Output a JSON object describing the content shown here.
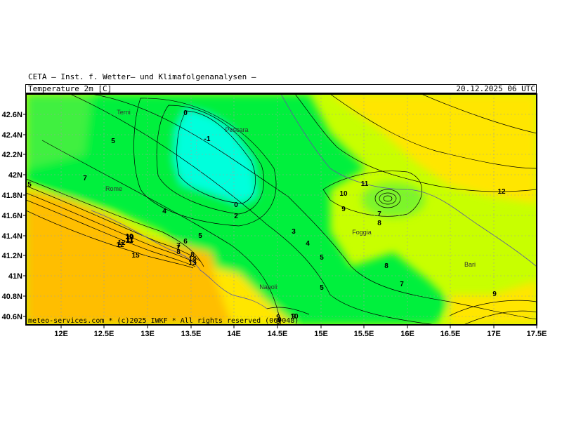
{
  "header": {
    "institute": "CETA — Inst. f. Wetter— und Klimafolgenanalysen —",
    "parameter": "Temperature_2m [C]",
    "valid_time": "20.12.2025 06 UTC"
  },
  "footer": "meteo-services.com * (c)2025 IWKF * All rights reserved (06+048)",
  "axes": {
    "lon_ticks": [
      "12E",
      "12.5E",
      "13E",
      "13.5E",
      "14E",
      "14.5E",
      "15E",
      "15.5E",
      "16E",
      "16.5E",
      "17E",
      "17.5E"
    ],
    "lat_ticks": [
      "42.6N",
      "42.4N",
      "42.2N",
      "42N",
      "41.8N",
      "41.6N",
      "41.4N",
      "41.2N",
      "41N",
      "40.8N",
      "40.6N"
    ]
  },
  "cities": [
    "Terni",
    "Pescara",
    "Rome",
    "Foggia",
    "Bari",
    "Napoli"
  ],
  "contour_labels": [
    "0",
    "-1",
    "5",
    "7",
    "5",
    "0",
    "2",
    "4",
    "6",
    "5",
    "3",
    "4",
    "7",
    "8",
    "9",
    "10",
    "12",
    "11",
    "15",
    "12",
    "14",
    "13",
    "5",
    "5",
    "9",
    "8",
    "7",
    "9",
    "9",
    "10",
    "11",
    "7",
    "8",
    "7",
    "8",
    "9",
    "12",
    "10",
    "9",
    "10",
    "11"
  ],
  "colors": {
    "cold_cyan": "#00ffdc",
    "green": "#00f03c",
    "yellow_green": "#c8ff00",
    "yellow": "#ffe600",
    "orange": "#ffbe00"
  }
}
